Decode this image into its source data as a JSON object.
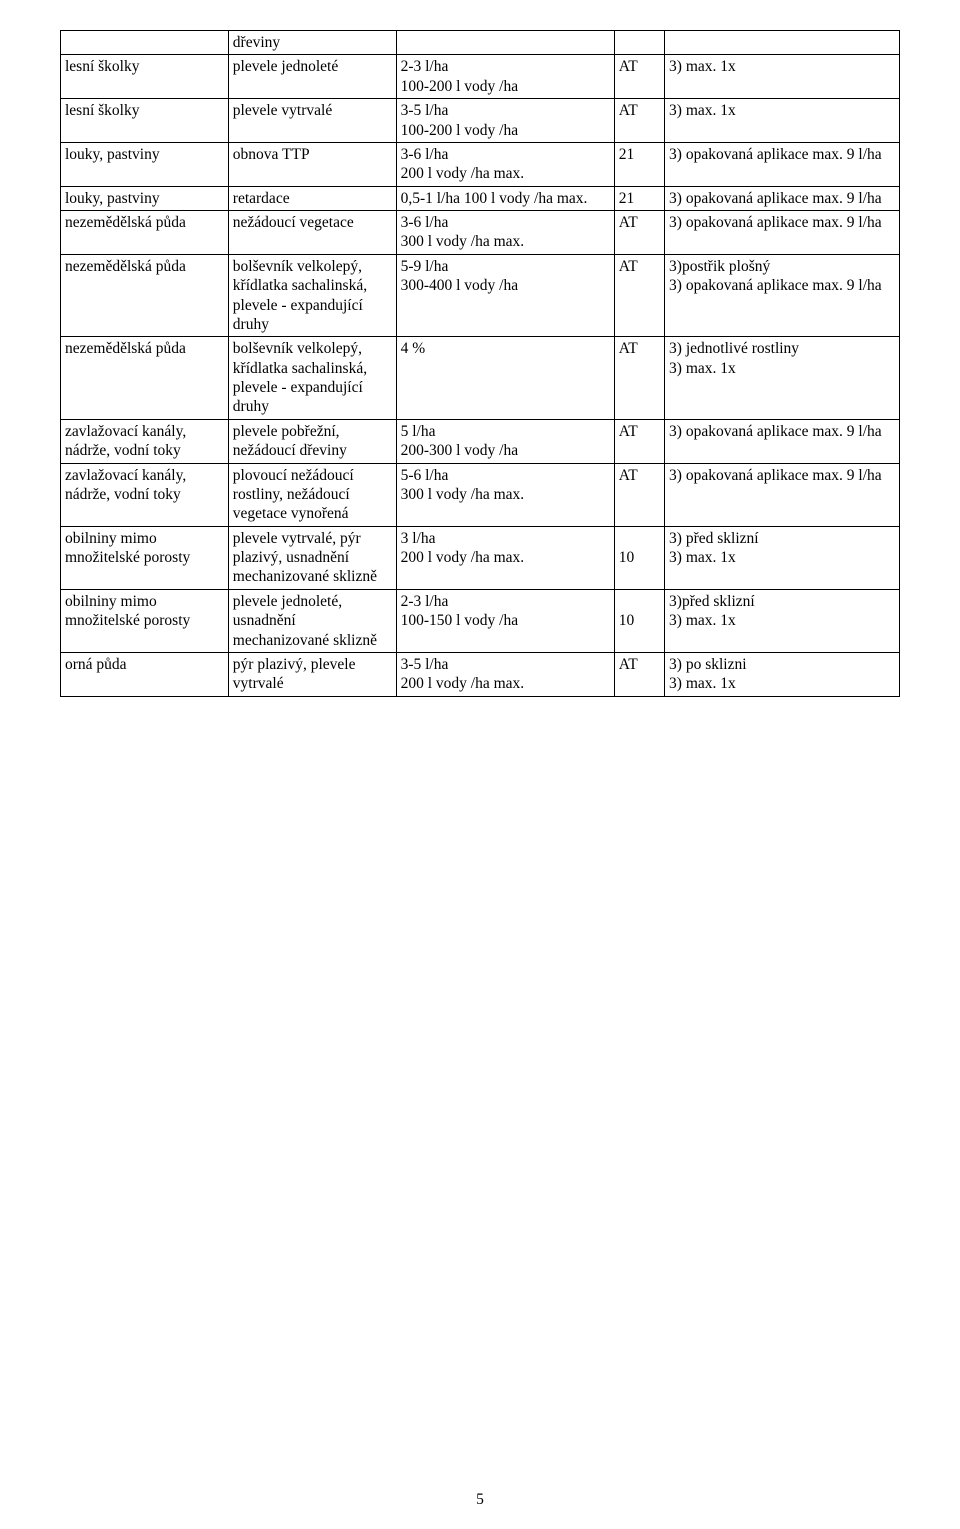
{
  "page_number": "5",
  "rows": [
    {
      "c1": "",
      "c2": "dřeviny",
      "c3": "",
      "c4": "",
      "c5": ""
    },
    {
      "c1": "lesní školky",
      "c2": "plevele jednoleté",
      "c3": "2-3 l/ha\n100-200 l vody /ha",
      "c4": "AT",
      "c5": "3) max. 1x"
    },
    {
      "c1": "lesní školky",
      "c2": "plevele vytrvalé",
      "c3": "3-5 l/ha\n100-200 l vody /ha",
      "c4": "AT",
      "c5": "3) max. 1x"
    },
    {
      "c1": "louky, pastviny",
      "c2": "obnova TTP",
      "c3": "3-6 l/ha\n200 l vody /ha max.",
      "c4": "21",
      "c5": "3) opakovaná aplikace max. 9 l/ha"
    },
    {
      "c1": "louky, pastviny",
      "c2": "retardace",
      "c3": "0,5-1 l/ha  100 l vody /ha max.",
      "c4": "21",
      "c5": "3) opakovaná aplikace max. 9 l/ha"
    },
    {
      "c1": "nezemědělská půda",
      "c2": "nežádoucí vegetace",
      "c3": "3-6 l/ha\n300 l vody /ha max.",
      "c4": "AT",
      "c5": "3) opakovaná aplikace max. 9 l/ha"
    },
    {
      "c1": "nezemědělská půda",
      "c2": "bolševník velkolepý, křídlatka sachalinská, plevele - expandující druhy",
      "c3": "5-9 l/ha\n300-400 l vody /ha",
      "c4": "AT",
      "c5": "3)postřik plošný\n3) opakovaná aplikace max. 9 l/ha"
    },
    {
      "c1": "nezemědělská půda",
      "c2": "bolševník velkolepý, křídlatka sachalinská, plevele - expandující druhy",
      "c3": "4 %",
      "c4": "AT",
      "c5": "3) jednotlivé rostliny\n3) max. 1x"
    },
    {
      "c1": "zavlažovací kanály, nádrže, vodní toky",
      "c2": "plevele pobřežní, nežádoucí dřeviny",
      "c3": "5 l/ha\n200-300 l vody /ha",
      "c4": "AT",
      "c5": "3) opakovaná aplikace max. 9 l/ha"
    },
    {
      "c1": "zavlažovací kanály, nádrže, vodní toky",
      "c2": "plovoucí nežádoucí rostliny, nežádoucí vegetace vynořená",
      "c3": "5-6 l/ha\n300 l vody /ha max.",
      "c4": "AT",
      "c5": "3) opakovaná aplikace max. 9 l/ha"
    },
    {
      "c1": "obilniny mimo množitelské porosty",
      "c2": "plevele vytrvalé, pýr plazivý, usnadnění mechanizované sklizně",
      "c3": "3 l/ha\n200 l vody /ha max.",
      "c4": "\n10",
      "c5": "3) před sklizní\n3) max. 1x"
    },
    {
      "c1": "obilniny mimo množitelské porosty",
      "c2": "plevele jednoleté, usnadnění mechanizované sklizně",
      "c3": "2-3 l/ha\n100-150 l vody /ha",
      "c4": "\n10",
      "c5": "3)před sklizní\n3) max. 1x"
    },
    {
      "c1": "orná půda",
      "c2": "pýr plazivý, plevele vytrvalé",
      "c3": "3-5 l/ha\n200 l vody /ha max.",
      "c4": "AT",
      "c5": "3) po sklizni\n3) max. 1x"
    }
  ]
}
